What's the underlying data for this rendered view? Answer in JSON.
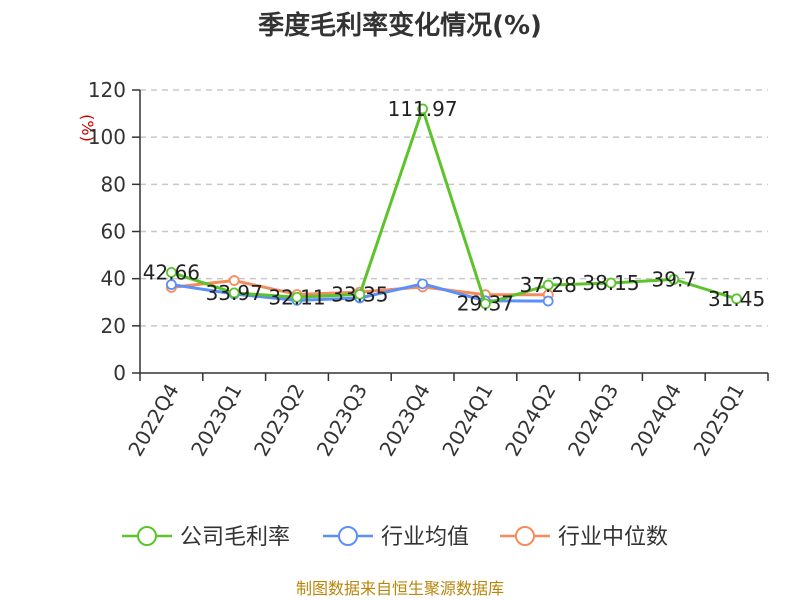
{
  "chart_data": {
    "type": "line",
    "title": "季度毛利率变化情况(%)",
    "ylabel": "(%)",
    "xlabel": "",
    "categories": [
      "2022Q4",
      "2023Q1",
      "2023Q2",
      "2023Q3",
      "2023Q4",
      "2024Q1",
      "2024Q2",
      "2024Q3",
      "2024Q4",
      "2025Q1"
    ],
    "yticks": [
      "0",
      "20",
      "40",
      "60",
      "80",
      "100",
      "120"
    ],
    "ylim": [
      0,
      120
    ],
    "grid": "horizontal dashed",
    "legend_position": "bottom",
    "series": [
      {
        "name": "公司毛利率",
        "color": "#5cc42b",
        "values": [
          42.66,
          33.97,
          32.11,
          33.35,
          111.97,
          29.37,
          37.28,
          38.15,
          39.7,
          31.45
        ],
        "labels": [
          "42.66",
          "33.97",
          "32.11",
          "33.35",
          "111.97",
          "29.37",
          "37.28",
          "38.15",
          "39.7",
          "31.45"
        ]
      },
      {
        "name": "行业均值",
        "color": "#5b8ff9",
        "values": [
          37.5,
          33.5,
          30.8,
          31.8,
          37.8,
          30.6,
          30.5,
          null,
          null,
          null
        ]
      },
      {
        "name": "行业中位数",
        "color": "#f58c5e",
        "values": [
          36.3,
          39.2,
          33.3,
          34.3,
          36.5,
          33.2,
          33.2,
          null,
          null,
          null
        ]
      }
    ]
  },
  "footer": {
    "source": "制图数据来自恒生聚源数据库"
  }
}
